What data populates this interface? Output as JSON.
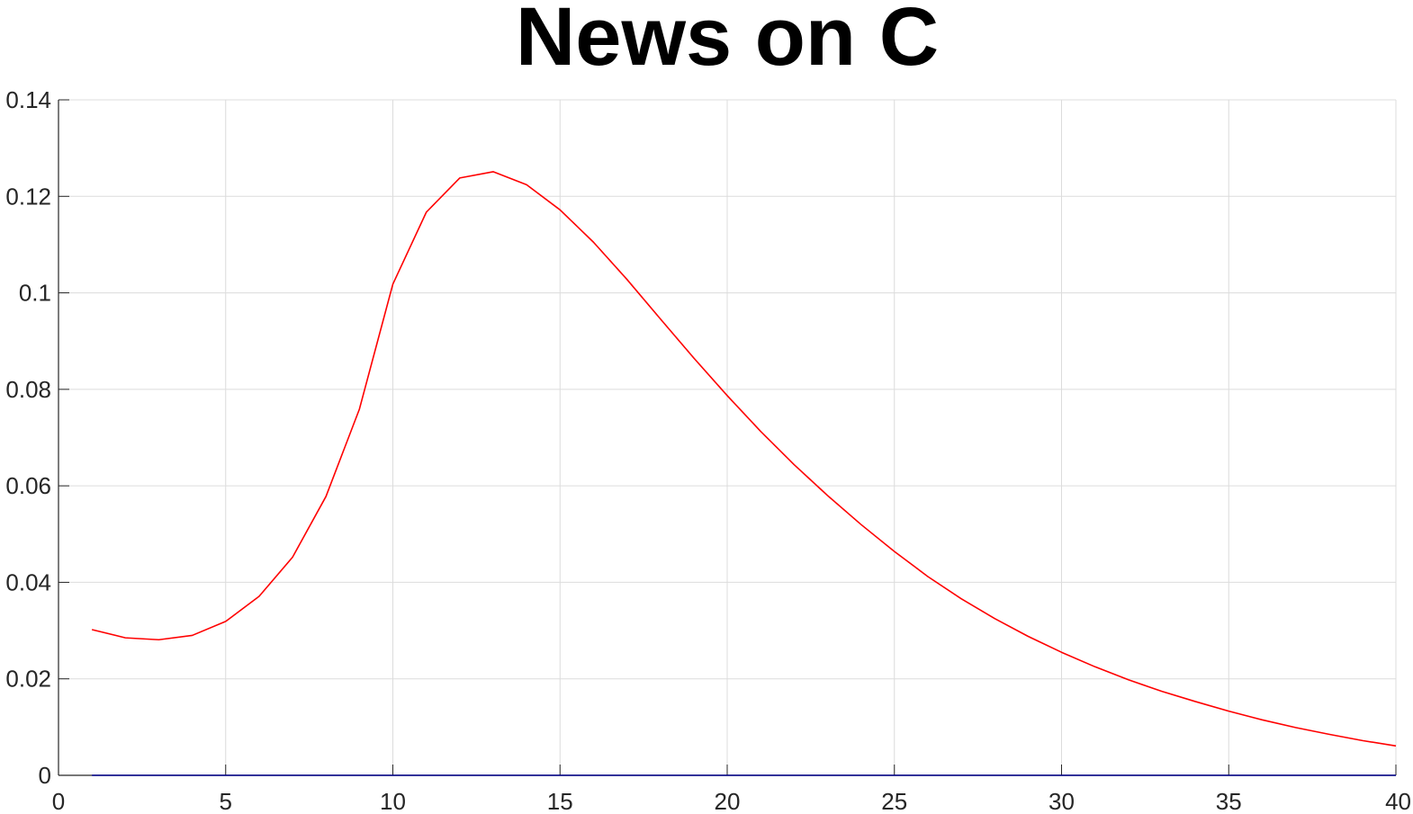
{
  "chart_data": {
    "type": "line",
    "title": "News on C",
    "xlabel": "",
    "ylabel": "",
    "xlim": [
      0,
      40
    ],
    "ylim": [
      0,
      0.14
    ],
    "xticks": [
      0,
      5,
      10,
      15,
      20,
      25,
      30,
      35,
      40
    ],
    "yticks": [
      0,
      0.02,
      0.04,
      0.06,
      0.08,
      0.1,
      0.12,
      0.14
    ],
    "xtick_labels": [
      "0",
      "5",
      "10",
      "15",
      "20",
      "25",
      "30",
      "35",
      "40"
    ],
    "ytick_labels": [
      "0",
      "0.02",
      "0.04",
      "0.06",
      "0.08",
      "0.1",
      "0.12",
      "0.14"
    ],
    "grid": true,
    "legend": "none",
    "series": [
      {
        "color": "#ff0000",
        "x": [
          1,
          2,
          3,
          4,
          5,
          6,
          7,
          8,
          9,
          10,
          11,
          12,
          13,
          14,
          15,
          16,
          17,
          18,
          19,
          20,
          21,
          22,
          23,
          24,
          25,
          26,
          27,
          28,
          29,
          30,
          31,
          32,
          33,
          34,
          35,
          36,
          37,
          38,
          39,
          40
        ],
        "y": [
          0.0302,
          0.0285,
          0.0281,
          0.029,
          0.0319,
          0.0371,
          0.0452,
          0.0578,
          0.0759,
          0.1018,
          0.1167,
          0.1238,
          0.1251,
          0.1224,
          0.1172,
          0.1105,
          0.1028,
          0.0946,
          0.0865,
          0.0787,
          0.0713,
          0.0644,
          0.058,
          0.052,
          0.0464,
          0.0412,
          0.0366,
          0.0325,
          0.0288,
          0.0255,
          0.0225,
          0.0198,
          0.0174,
          0.0153,
          0.0133,
          0.0115,
          0.0099,
          0.0085,
          0.0072,
          0.0061
        ]
      },
      {
        "color": "#00008b",
        "x": [
          1,
          40
        ],
        "y": [
          0,
          0
        ]
      }
    ]
  }
}
